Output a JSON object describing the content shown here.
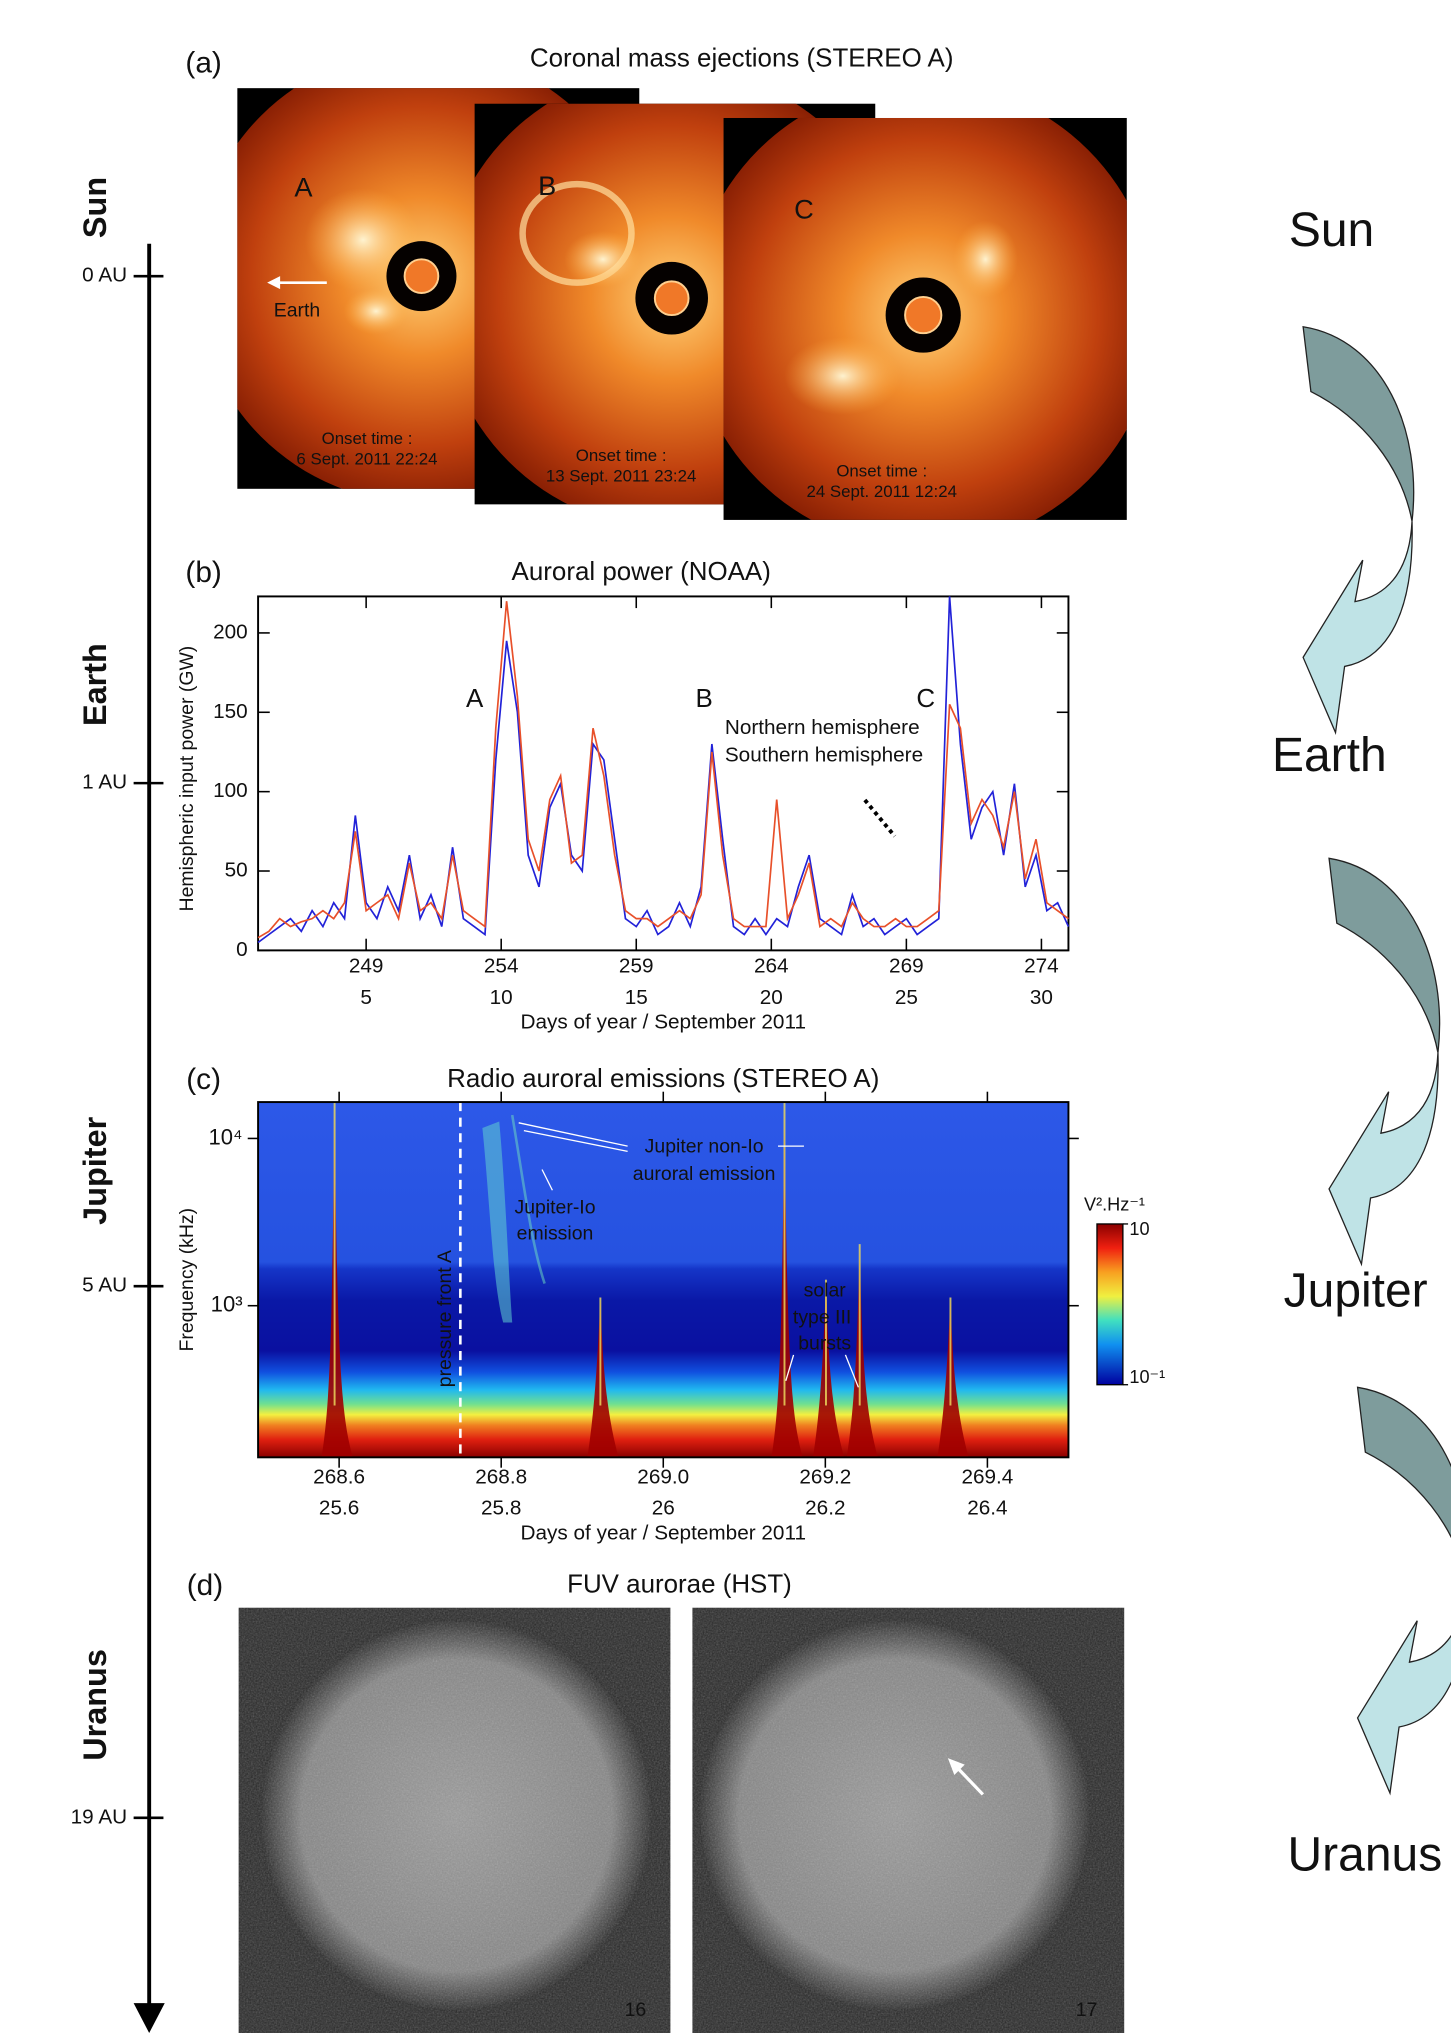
{
  "timeline": {
    "bodies": [
      "Sun",
      "Earth",
      "Jupiter",
      "Uranus"
    ],
    "distances": [
      "0 AU",
      "1 AU",
      "5 AU",
      "19 AU"
    ]
  },
  "flow": {
    "labels": [
      "Sun",
      "Earth",
      "Jupiter",
      "Uranus"
    ]
  },
  "panel_a": {
    "panel_label": "(a)",
    "title": "Coronal mass ejections (STEREO A)",
    "earth_label": "Earth",
    "images": [
      {
        "label": "A",
        "onset_label": "Onset time :",
        "onset_time": "6 Sept. 2011 22:24"
      },
      {
        "label": "B",
        "onset_label": "Onset time :",
        "onset_time": "13 Sept. 2011 23:24"
      },
      {
        "label": "C",
        "onset_label": "Onset time :",
        "onset_time": "24 Sept. 2011 12:24"
      }
    ]
  },
  "chart_data": [
    {
      "type": "line",
      "panel_label": "(b)",
      "title": "Auroral power (NOAA)",
      "x_label": "Days of year / September 2011",
      "y_label": "Hemispheric input power (GW)",
      "xlim": [
        245,
        275
      ],
      "ylim": [
        0,
        223
      ],
      "xticks": [
        249,
        254,
        259,
        264,
        269,
        274
      ],
      "x2ticks": [
        {
          "value": 249,
          "label": "5"
        },
        {
          "value": 254,
          "label": "10"
        },
        {
          "value": 259,
          "label": "15"
        },
        {
          "value": 264,
          "label": "20"
        },
        {
          "value": 269,
          "label": "25"
        },
        {
          "value": 274,
          "label": "30"
        }
      ],
      "yticks": [
        0,
        50,
        100,
        150,
        200
      ],
      "annotations": [
        "A",
        "B",
        "C"
      ],
      "x": [
        245,
        245.4,
        245.8,
        246.2,
        246.6,
        247,
        247.4,
        247.8,
        248.2,
        248.6,
        249,
        249.4,
        249.8,
        250.2,
        250.6,
        251,
        251.4,
        251.8,
        252.2,
        252.6,
        253,
        253.4,
        253.8,
        254.2,
        254.6,
        255,
        255.4,
        255.8,
        256.2,
        256.6,
        257,
        257.4,
        257.8,
        258.2,
        258.6,
        259,
        259.4,
        259.8,
        260.2,
        260.6,
        261,
        261.4,
        261.8,
        262.2,
        262.6,
        263,
        263.4,
        263.8,
        264.2,
        264.6,
        265,
        265.4,
        265.8,
        266.2,
        266.6,
        267,
        267.4,
        267.8,
        268.2,
        268.6,
        269,
        269.4,
        269.8,
        270.2,
        270.6,
        271,
        271.4,
        271.8,
        272.2,
        272.6,
        273,
        273.4,
        273.8,
        274.2,
        274.6,
        275
      ],
      "series": [
        {
          "name": "Northern hemisphere",
          "color": "#2222d8",
          "values": [
            5,
            10,
            15,
            20,
            12,
            25,
            15,
            30,
            20,
            85,
            30,
            20,
            40,
            25,
            60,
            20,
            35,
            15,
            65,
            20,
            15,
            10,
            120,
            195,
            150,
            60,
            40,
            90,
            105,
            60,
            50,
            130,
            120,
            70,
            20,
            15,
            25,
            10,
            15,
            30,
            15,
            40,
            130,
            70,
            15,
            10,
            20,
            10,
            20,
            15,
            40,
            60,
            20,
            15,
            10,
            35,
            15,
            20,
            10,
            15,
            20,
            10,
            15,
            20,
            223,
            130,
            70,
            90,
            100,
            60,
            105,
            40,
            60,
            25,
            30,
            15
          ]
        },
        {
          "name": "Southern hemisphere",
          "color": "#e8502a",
          "values": [
            8,
            12,
            20,
            15,
            18,
            20,
            25,
            20,
            30,
            75,
            25,
            30,
            35,
            20,
            55,
            25,
            30,
            20,
            60,
            25,
            20,
            15,
            140,
            220,
            160,
            70,
            50,
            95,
            110,
            55,
            60,
            140,
            110,
            60,
            25,
            20,
            20,
            15,
            20,
            25,
            20,
            35,
            125,
            60,
            20,
            15,
            15,
            15,
            95,
            20,
            35,
            55,
            15,
            20,
            15,
            30,
            20,
            15,
            15,
            20,
            15,
            15,
            20,
            25,
            155,
            140,
            80,
            95,
            85,
            65,
            100,
            45,
            70,
            30,
            25,
            20
          ]
        }
      ]
    },
    {
      "type": "spectrogram",
      "panel_label": "(c)",
      "title": "Radio auroral emissions (STEREO A)",
      "x_label": "Days of year / September 2011",
      "y_label": "Frequency (kHz)",
      "xlim": [
        268.5,
        269.5
      ],
      "ylim": [
        124,
        16500
      ],
      "log_y": true,
      "xticks": [
        268.6,
        268.8,
        {
          "value": 269,
          "label": "269.0"
        },
        269.2,
        269.4
      ],
      "x2ticks": [
        {
          "value": 268.6,
          "label": "25.6"
        },
        {
          "value": 268.8,
          "label": "25.8"
        },
        {
          "value": 269,
          "label": "26"
        },
        {
          "value": 269.2,
          "label": "26.2"
        },
        {
          "value": 269.4,
          "label": "26.4"
        }
      ],
      "yticks": [
        {
          "value": 1000,
          "label": "10³"
        },
        {
          "value": 10000,
          "label": "10⁴"
        }
      ],
      "annotations": [
        "pressure front A",
        "Jupiter non-Io",
        "auroral emission",
        "Jupiter-Io",
        "emission",
        "solar",
        "type III",
        "bursts"
      ],
      "colorbar": {
        "label": "V².Hz⁻¹",
        "ticks": [
          10,
          {
            "value": 0.1,
            "label": "10⁻¹"
          }
        ]
      }
    }
  ],
  "panel_d": {
    "panel_label": "(d)",
    "title": "FUV aurorae (HST)",
    "image_labels": [
      "16",
      "17"
    ]
  }
}
